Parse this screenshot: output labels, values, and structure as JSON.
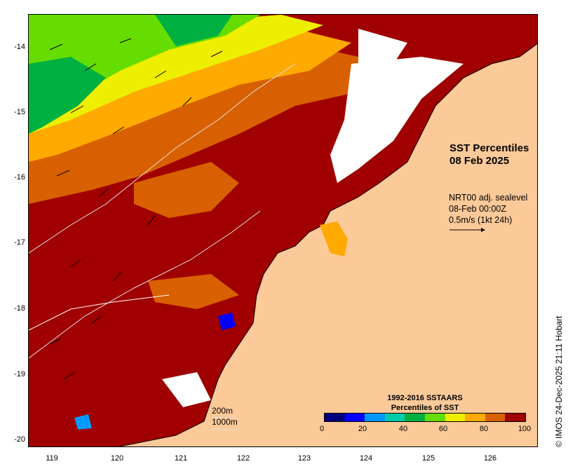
{
  "title": {
    "line1": "SST Percentiles",
    "line2": "08 Feb 2025"
  },
  "current_info": {
    "line1": "NRT00 adj. sealevel",
    "line2": "08-Feb 00:00Z",
    "line3": "0.5m/s (1kt 24h)"
  },
  "legend": {
    "title_line1": "1992-2016 SSTAARS",
    "title_line2": "Percentiles of SST",
    "labels": [
      "0",
      "20",
      "40",
      "60",
      "80",
      "100"
    ],
    "colors": [
      "#00007f",
      "#0000ff",
      "#0099ff",
      "#00ccaa",
      "#00b040",
      "#66dd00",
      "#eeee00",
      "#ffaa00",
      "#d86000",
      "#a00000"
    ]
  },
  "depth_contours": {
    "line1": "200m",
    "line2": "1000m"
  },
  "axes": {
    "y_labels": [
      "-14",
      "-15",
      "-16",
      "-17",
      "-18",
      "-19",
      "-20"
    ],
    "x_labels": [
      "119",
      "120",
      "121",
      "122",
      "123",
      "124",
      "125",
      "126"
    ]
  },
  "credit": "© IMOS 24-Dec-2025 21:11 Hobart",
  "colors": {
    "land": "#fcc998",
    "hot": "#a00000",
    "warm": "#d86000",
    "mid": "#ffaa00",
    "yellow": "#eeee00",
    "green": "#66dd00",
    "cloud": "#ffffff"
  }
}
